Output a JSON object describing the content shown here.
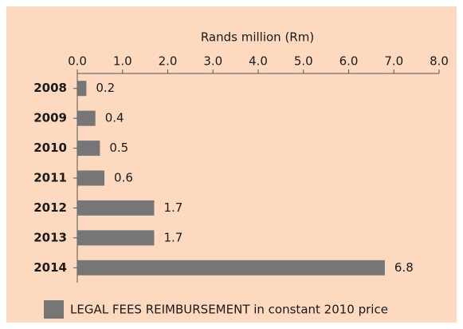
{
  "chart_data": {
    "type": "bar",
    "orientation": "horizontal",
    "x_axis_label": "Rands million (Rm)",
    "categories": [
      "2008",
      "2009",
      "2010",
      "2011",
      "2012",
      "2013",
      "2014"
    ],
    "series": [
      {
        "name": "LEGAL FEES REIMBURSEMENT in constant 2010 price",
        "color": "#767676",
        "values": [
          0.2,
          0.4,
          0.5,
          0.6,
          1.7,
          1.7,
          6.8
        ]
      }
    ],
    "xlim": [
      0,
      8
    ],
    "xticks": [
      {
        "value": 0,
        "label": "0.0"
      },
      {
        "value": 1,
        "label": "1.0"
      },
      {
        "value": 2,
        "label": "2.0"
      },
      {
        "value": 3,
        "label": "3.0"
      },
      {
        "value": 4,
        "label": "4.0"
      },
      {
        "value": 5,
        "label": "5.0"
      },
      {
        "value": 6,
        "label": "6.0"
      },
      {
        "value": 7,
        "label": "7.0"
      },
      {
        "value": 8,
        "label": "8.0"
      }
    ],
    "background": "#fcd9bf"
  }
}
